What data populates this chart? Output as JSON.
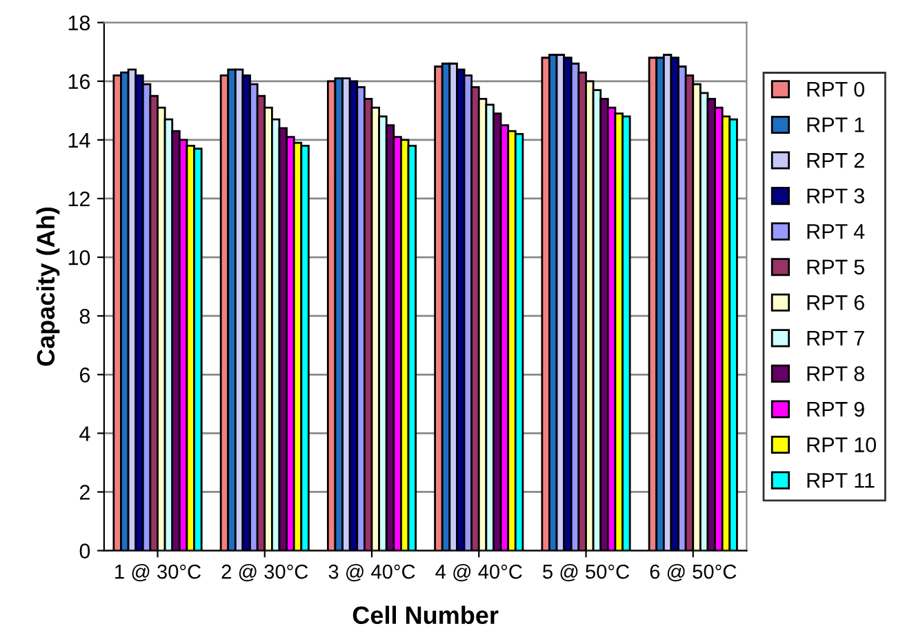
{
  "chart_data": {
    "type": "bar",
    "xlabel": "Cell Number",
    "ylabel": "Capacity (Ah)",
    "categories": [
      "1 @ 30°C",
      "2 @ 30°C",
      "3 @ 40°C",
      "4 @ 40°C",
      "5 @ 50°C",
      "6 @ 50°C"
    ],
    "series": [
      {
        "name": "RPT 0",
        "color": "#f08080",
        "values": [
          16.2,
          16.2,
          16.0,
          16.5,
          16.8,
          16.8
        ]
      },
      {
        "name": "RPT 1",
        "color": "#1f6fc0",
        "values": [
          16.3,
          16.4,
          16.1,
          16.6,
          16.9,
          16.8
        ]
      },
      {
        "name": "RPT 2",
        "color": "#c8c8f8",
        "values": [
          16.4,
          16.4,
          16.1,
          16.6,
          16.9,
          16.9
        ]
      },
      {
        "name": "RPT 3",
        "color": "#000080",
        "values": [
          16.2,
          16.2,
          16.0,
          16.4,
          16.8,
          16.8
        ]
      },
      {
        "name": "RPT 4",
        "color": "#9999ff",
        "values": [
          15.9,
          15.9,
          15.8,
          16.2,
          16.6,
          16.5
        ]
      },
      {
        "name": "RPT 5",
        "color": "#993366",
        "values": [
          15.5,
          15.5,
          15.4,
          15.8,
          16.3,
          16.2
        ]
      },
      {
        "name": "RPT 6",
        "color": "#ffffcc",
        "values": [
          15.1,
          15.1,
          15.1,
          15.4,
          16.0,
          15.9
        ]
      },
      {
        "name": "RPT 7",
        "color": "#ccffff",
        "values": [
          14.7,
          14.7,
          14.8,
          15.2,
          15.7,
          15.6
        ]
      },
      {
        "name": "RPT 8",
        "color": "#660066",
        "values": [
          14.3,
          14.4,
          14.5,
          14.9,
          15.4,
          15.4
        ]
      },
      {
        "name": "RPT 9",
        "color": "#ff00ff",
        "values": [
          14.0,
          14.1,
          14.1,
          14.5,
          15.1,
          15.1
        ]
      },
      {
        "name": "RPT 10",
        "color": "#ffff00",
        "values": [
          13.8,
          13.9,
          14.0,
          14.3,
          14.9,
          14.8
        ]
      },
      {
        "name": "RPT 11",
        "color": "#00ffff",
        "values": [
          13.7,
          13.8,
          13.8,
          14.2,
          14.8,
          14.7
        ]
      }
    ],
    "ylim": [
      0,
      18
    ],
    "yticks": [
      0,
      2,
      4,
      6,
      8,
      10,
      12,
      14,
      16,
      18
    ],
    "grid": "y",
    "legend": "right"
  }
}
